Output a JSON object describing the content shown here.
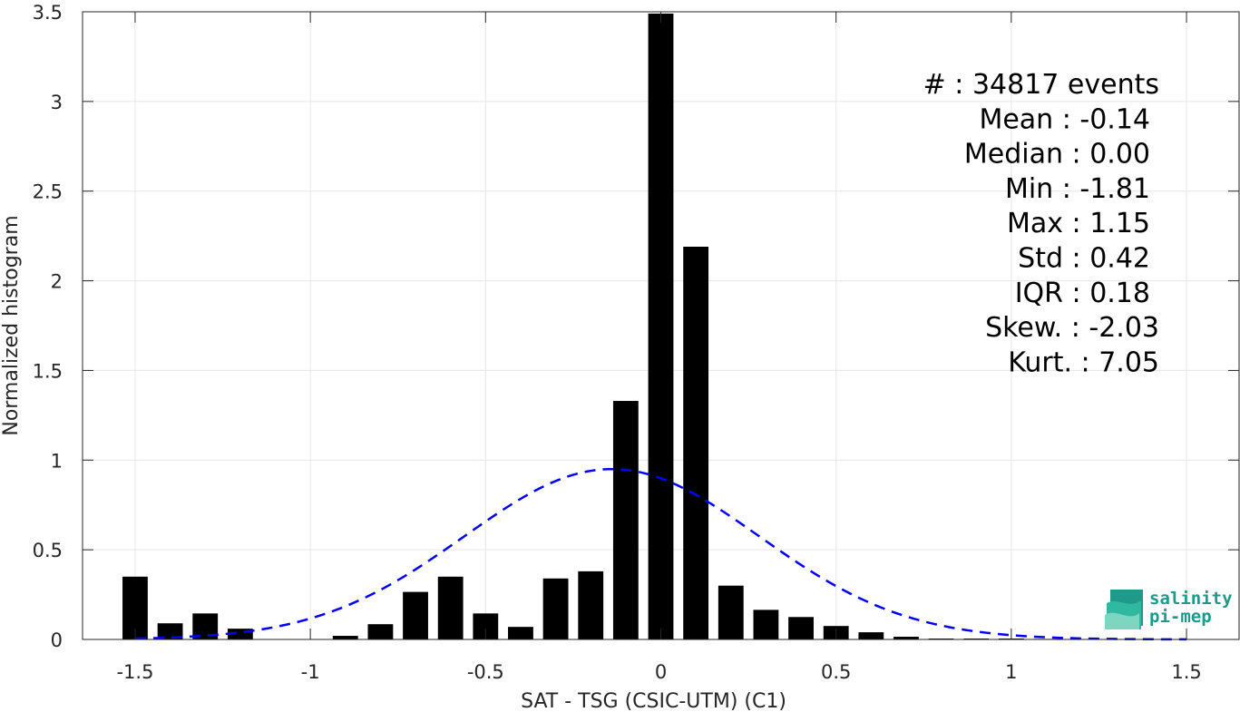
{
  "chart_data": {
    "type": "bar",
    "xlabel": "SAT - TSG (CSIC-UTM) (C1)",
    "ylabel": "Normalized histogram",
    "xlim": [
      -1.65,
      1.65
    ],
    "ylim": [
      0,
      3.5
    ],
    "grid": true,
    "x_ticks": [
      -1.5,
      -1,
      -0.5,
      0,
      0.5,
      1,
      1.5
    ],
    "x_tick_labels": [
      "-1.5",
      "-1",
      "-0.5",
      "0",
      "0.5",
      "1",
      "1.5"
    ],
    "y_ticks": [
      0,
      0.5,
      1,
      1.5,
      2,
      2.5,
      3,
      3.5
    ],
    "y_tick_labels": [
      "0",
      "0.5",
      "1",
      "1.5",
      "2",
      "2.5",
      "3",
      "3.5"
    ],
    "bin_width": 0.1,
    "bars": {
      "x": [
        -1.5,
        -1.4,
        -1.3,
        -1.2,
        -1.1,
        -1.0,
        -0.9,
        -0.8,
        -0.7,
        -0.6,
        -0.5,
        -0.4,
        -0.3,
        -0.2,
        -0.1,
        0.0,
        0.1,
        0.2,
        0.3,
        0.4,
        0.5,
        0.6,
        0.7,
        0.8,
        0.9,
        1.0,
        1.1
      ],
      "values": [
        0.35,
        0.09,
        0.145,
        0.06,
        0.0,
        0.0,
        0.02,
        0.085,
        0.265,
        0.35,
        0.145,
        0.07,
        0.34,
        0.38,
        1.33,
        3.49,
        2.19,
        0.3,
        0.165,
        0.125,
        0.075,
        0.04,
        0.015,
        0.005,
        0.005,
        0.005,
        0.003
      ],
      "color": "#000000"
    },
    "fit_curve": {
      "style": "dashed",
      "color": "#0000ff",
      "mean": -0.14,
      "std": 0.42,
      "x_range": [
        -1.5,
        1.5
      ]
    },
    "annotation": [
      "#  : 34817 events",
      "Mean : -0.14",
      "Median : 0.00",
      "Min : -1.81",
      "Max : 1.15",
      "Std : 0.42",
      "IQR : 0.18",
      "Skew. : -2.03",
      "Kurt. : 7.05"
    ]
  },
  "logo": {
    "line1": "salinity",
    "line2": "pi-mep",
    "color": "#1f9a8a"
  }
}
